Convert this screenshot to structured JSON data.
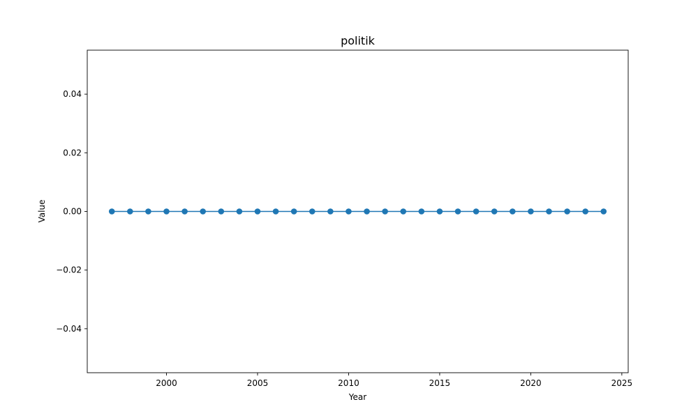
{
  "chart_data": {
    "type": "line",
    "title": "politik",
    "xlabel": "Year",
    "ylabel": "Value",
    "xlim": [
      1995.65,
      2025.35
    ],
    "ylim": [
      -0.055,
      0.055
    ],
    "xticks": [
      2000,
      2005,
      2010,
      2015,
      2020,
      2025
    ],
    "yticks": [
      -0.04,
      -0.02,
      0.0,
      0.02,
      0.04
    ],
    "xtick_labels": [
      "2000",
      "2005",
      "2010",
      "2015",
      "2020",
      "2025"
    ],
    "ytick_labels": [
      "−0.04",
      "−0.02",
      "0.00",
      "0.02",
      "0.04"
    ],
    "grid": false,
    "series": [
      {
        "color": "#1f77b4",
        "marker": "circle",
        "x": [
          1997,
          1998,
          1999,
          2000,
          2001,
          2002,
          2003,
          2004,
          2005,
          2006,
          2007,
          2008,
          2009,
          2010,
          2011,
          2012,
          2013,
          2014,
          2015,
          2016,
          2017,
          2018,
          2019,
          2020,
          2021,
          2022,
          2023,
          2024
        ],
        "y": [
          0,
          0,
          0,
          0,
          0,
          0,
          0,
          0,
          0,
          0,
          0,
          0,
          0,
          0,
          0,
          0,
          0,
          0,
          0,
          0,
          0,
          0,
          0,
          0,
          0,
          0,
          0,
          0
        ]
      }
    ]
  }
}
